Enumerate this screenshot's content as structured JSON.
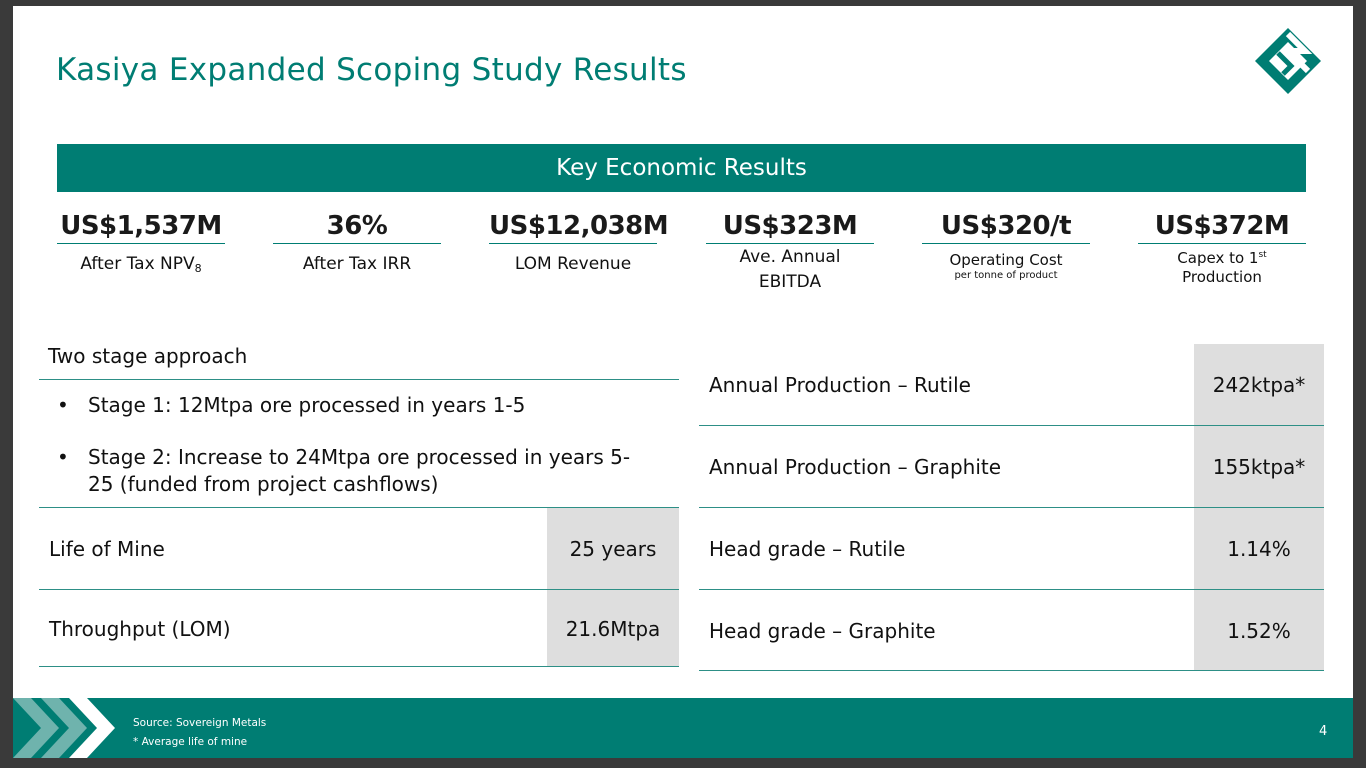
{
  "title": "Kasiya Expanded Scoping Study Results",
  "banner": "Key Economic Results",
  "kpis": [
    {
      "value": "US$1,537M",
      "label": "After Tax NPV",
      "label_sub": "8"
    },
    {
      "value": "36%",
      "label": "After Tax IRR"
    },
    {
      "value": "US$12,038M",
      "label": "LOM Revenue"
    },
    {
      "value": "US$323M",
      "label_line1": "Ave. Annual",
      "label_line2": "EBITDA"
    },
    {
      "value": "US$320/t",
      "label": "Operating Cost",
      "sublabel": "per tonne of product"
    },
    {
      "value": "US$372M",
      "label_pre": "Capex to 1",
      "label_sup": "st",
      "label_line2": "Production"
    }
  ],
  "approach": {
    "heading": "Two stage approach",
    "bullets": [
      "Stage 1: 12Mtpa ore processed in years 1-5",
      "Stage 2: Increase to 24Mtpa ore processed in years 5-25 (funded from project cashflows)"
    ],
    "bullet_symbol": "•"
  },
  "left_table": [
    {
      "label": "Life of Mine",
      "value": "25 years"
    },
    {
      "label": "Throughput (LOM)",
      "value": "21.6Mtpa"
    }
  ],
  "right_table": [
    {
      "label": "Annual Production – Rutile",
      "value": "242ktpa*"
    },
    {
      "label": "Annual Production – Graphite",
      "value": "155ktpa*"
    },
    {
      "label": "Head grade – Rutile",
      "value": "1.14%"
    },
    {
      "label": "Head grade – Graphite",
      "value": "1.52%"
    }
  ],
  "footer": {
    "source": "Source: Sovereign Metals",
    "note": "* Average life of mine",
    "page_number": "4"
  },
  "colors": {
    "accent": "#007d73",
    "value_box": "#dedede",
    "chevron_light": "#6fb3ad"
  }
}
